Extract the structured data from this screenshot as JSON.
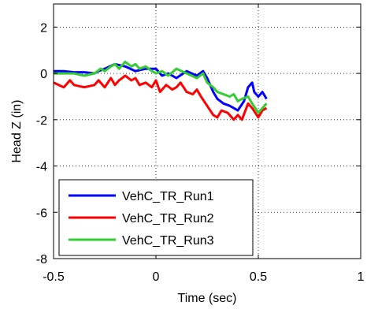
{
  "chart_data": {
    "type": "line",
    "title": "",
    "xlabel": "Time (sec)",
    "ylabel": "Head Z (in)",
    "xlim": [
      -0.5,
      1
    ],
    "ylim": [
      -8,
      3
    ],
    "xticks": [
      -0.5,
      0,
      0.5,
      1
    ],
    "xtick_labels": [
      "-0.5",
      "0",
      "0.5",
      "1"
    ],
    "yticks": [
      -8,
      -6,
      -4,
      -2,
      0,
      2
    ],
    "ytick_labels": [
      "-8",
      "-6",
      "-4",
      "-2",
      "0",
      "2"
    ],
    "grid": true,
    "legend_position": "bottom-left",
    "series": [
      {
        "name": "VehC_TR_Run1",
        "color": "#0000ff",
        "x": [
          -0.5,
          -0.45,
          -0.4,
          -0.35,
          -0.3,
          -0.28,
          -0.25,
          -0.2,
          -0.15,
          -0.1,
          -0.05,
          0,
          0.03,
          0.06,
          0.1,
          0.15,
          0.2,
          0.23,
          0.25,
          0.28,
          0.3,
          0.33,
          0.36,
          0.38,
          0.4,
          0.43,
          0.45,
          0.47,
          0.48,
          0.5,
          0.52,
          0.54
        ],
        "y": [
          0.1,
          0.1,
          0.05,
          0.05,
          0.0,
          0.1,
          0.2,
          0.4,
          0.3,
          0.1,
          0.2,
          0.2,
          -0.1,
          0.0,
          -0.2,
          0.1,
          -0.1,
          0.1,
          -0.2,
          -0.8,
          -1.1,
          -1.3,
          -1.4,
          -1.5,
          -1.6,
          -1.2,
          -0.6,
          -0.4,
          -0.8,
          -1.0,
          -0.8,
          -1.1
        ]
      },
      {
        "name": "VehC_TR_Run2",
        "color": "#ff0000",
        "x": [
          -0.5,
          -0.45,
          -0.42,
          -0.4,
          -0.35,
          -0.3,
          -0.28,
          -0.25,
          -0.22,
          -0.2,
          -0.18,
          -0.15,
          -0.12,
          -0.1,
          -0.08,
          -0.05,
          -0.02,
          0,
          0.02,
          0.05,
          0.08,
          0.1,
          0.12,
          0.15,
          0.18,
          0.2,
          0.22,
          0.25,
          0.28,
          0.3,
          0.32,
          0.35,
          0.38,
          0.4,
          0.42,
          0.45,
          0.47,
          0.5,
          0.52,
          0.54
        ],
        "y": [
          -0.4,
          -0.6,
          -0.3,
          -0.5,
          -0.6,
          -0.5,
          -0.3,
          -0.6,
          -0.2,
          -0.5,
          -0.3,
          -0.1,
          -0.3,
          -0.2,
          -0.5,
          -0.4,
          -0.6,
          -0.3,
          -0.8,
          -0.5,
          -0.7,
          -0.6,
          -0.4,
          -0.8,
          -0.9,
          -0.7,
          -1.0,
          -1.4,
          -1.8,
          -1.9,
          -1.6,
          -1.7,
          -2.0,
          -1.8,
          -2.0,
          -1.3,
          -1.5,
          -1.9,
          -1.6,
          -1.5
        ]
      },
      {
        "name": "VehC_TR_Run3",
        "color": "#33cc33",
        "x": [
          -0.5,
          -0.45,
          -0.4,
          -0.35,
          -0.3,
          -0.27,
          -0.25,
          -0.22,
          -0.2,
          -0.18,
          -0.15,
          -0.12,
          -0.1,
          -0.08,
          -0.05,
          -0.02,
          0,
          0.03,
          0.06,
          0.1,
          0.15,
          0.2,
          0.23,
          0.25,
          0.28,
          0.3,
          0.33,
          0.36,
          0.38,
          0.4,
          0.42,
          0.45,
          0.47,
          0.5,
          0.52,
          0.54
        ],
        "y": [
          0.0,
          0.0,
          0.0,
          -0.1,
          0.0,
          0.2,
          0.1,
          0.3,
          0.4,
          0.2,
          0.5,
          0.3,
          0.4,
          0.2,
          0.3,
          0.1,
          0.0,
          0.1,
          -0.1,
          0.2,
          0.0,
          -0.2,
          0.0,
          -0.4,
          -0.6,
          -0.8,
          -0.9,
          -1.0,
          -0.9,
          -1.2,
          -1.1,
          -1.0,
          -1.3,
          -1.7,
          -1.5,
          -1.3
        ]
      }
    ]
  }
}
